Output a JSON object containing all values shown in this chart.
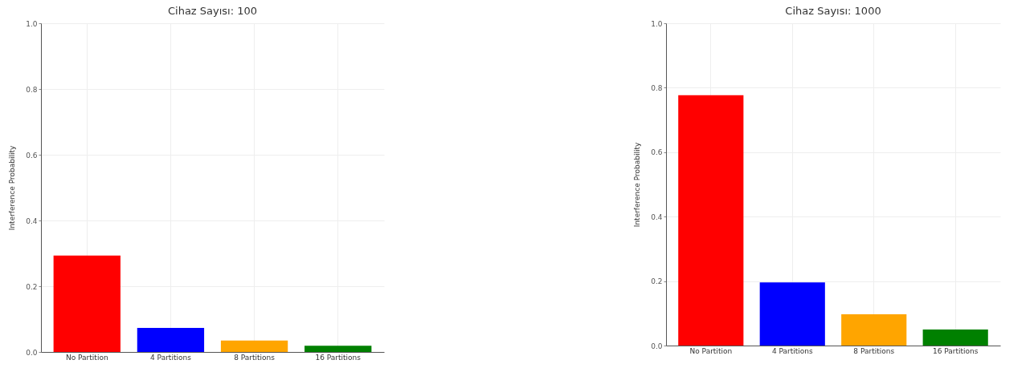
{
  "chart_data": [
    {
      "type": "bar",
      "title": "Cihaz Sayısı: 100",
      "ylabel": "Interference Probability",
      "categories": [
        "No Partition",
        "4 Partitions",
        "8 Partitions",
        "16 Partitions"
      ],
      "values": [
        0.293,
        0.073,
        0.035,
        0.019
      ],
      "colors": [
        "#ff0000",
        "#0000ff",
        "#ffa500",
        "#008000"
      ],
      "ylim": [
        0,
        1
      ],
      "yticks": [
        {
          "value": 0,
          "label": "0.0"
        },
        {
          "value": 0.2,
          "label": "0.2"
        },
        {
          "value": 0.4,
          "label": "0.4"
        },
        {
          "value": 0.6,
          "label": "0.6"
        },
        {
          "value": 0.8,
          "label": "0.8"
        },
        {
          "value": 1,
          "label": "1.0"
        }
      ],
      "grid": true
    },
    {
      "type": "bar",
      "title": "Cihaz Sayısı: 1000",
      "ylabel": "Interference Probability",
      "categories": [
        "No Partition",
        "4 Partitions",
        "8 Partitions",
        "16 Partitions"
      ],
      "values": [
        0.777,
        0.196,
        0.097,
        0.05
      ],
      "colors": [
        "#ff0000",
        "#0000ff",
        "#ffa500",
        "#008000"
      ],
      "ylim": [
        0,
        1
      ],
      "yticks": [
        {
          "value": 0,
          "label": "0.0"
        },
        {
          "value": 0.2,
          "label": "0.2"
        },
        {
          "value": 0.4,
          "label": "0.4"
        },
        {
          "value": 0.6,
          "label": "0.6"
        },
        {
          "value": 0.8,
          "label": "0.8"
        },
        {
          "value": 1,
          "label": "1.0"
        }
      ],
      "grid": true
    }
  ]
}
